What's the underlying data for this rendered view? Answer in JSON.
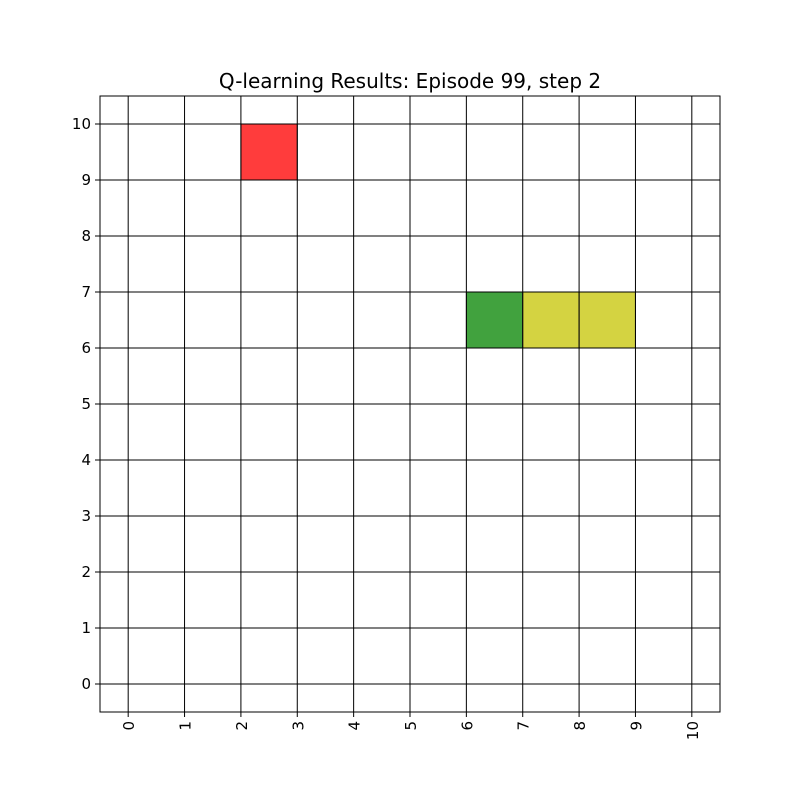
{
  "chart_data": {
    "type": "heatmap",
    "title": "Q-learning Results: Episode 99, step 2",
    "xlabel": "",
    "ylabel": "",
    "xlim": [
      -0.5,
      10.5
    ],
    "ylim": [
      -0.5,
      10.5
    ],
    "xticks": [
      "0",
      "1",
      "2",
      "3",
      "4",
      "5",
      "6",
      "7",
      "8",
      "9",
      "10"
    ],
    "yticks": [
      "0",
      "1",
      "2",
      "3",
      "4",
      "5",
      "6",
      "7",
      "8",
      "9",
      "10"
    ],
    "grid": true,
    "cells": [
      {
        "x": 2,
        "y": 9,
        "width": 1,
        "height": 1,
        "color": "#ff3c3c"
      },
      {
        "x": 6,
        "y": 6,
        "width": 1,
        "height": 1,
        "color": "#41a23e"
      },
      {
        "x": 7,
        "y": 6,
        "width": 1,
        "height": 1,
        "color": "#d4d341"
      },
      {
        "x": 8,
        "y": 6,
        "width": 1,
        "height": 1,
        "color": "#d4d341"
      }
    ]
  }
}
